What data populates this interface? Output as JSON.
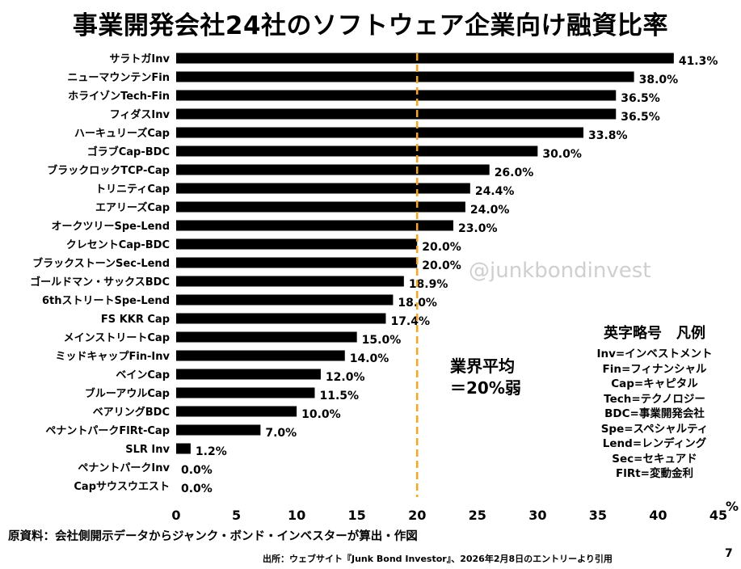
{
  "title": "事業開発会社24社のソフトウェア企業向け融資比率",
  "chart_data": {
    "type": "bar",
    "orientation": "horizontal",
    "categories": [
      "サラトガInv",
      "ニューマウンテンFin",
      "ホライゾンTech-Fin",
      "フィダスInv",
      "ハーキュリーズCap",
      "ゴラブCap-BDC",
      "ブラックロックTCP-Cap",
      "トリニティCap",
      "エアリーズCap",
      "オークツリーSpe-Lend",
      "クレセントCap-BDC",
      "ブラックストーンSec-Lend",
      "ゴールドマン・サックスBDC",
      "6thストリートSpe-Lend",
      "FS KKR Cap",
      "メインストリートCap",
      "ミッドキャップFin-Inv",
      "ベインCap",
      "ブルーアウルCap",
      "ベアリングBDC",
      "ペナントパークFlRt-Cap",
      "SLR Inv",
      "ペナントパークInv",
      "Capサウスウエスト"
    ],
    "values": [
      41.3,
      38.0,
      36.5,
      36.5,
      33.8,
      30.0,
      26.0,
      24.4,
      24.0,
      23.0,
      20.0,
      20.0,
      18.9,
      18.0,
      17.4,
      15.0,
      14.0,
      12.0,
      11.5,
      10.0,
      7.0,
      1.2,
      0.0,
      0.0
    ],
    "value_labels": [
      "41.3%",
      "38.0%",
      "36.5%",
      "36.5%",
      "33.8%",
      "30.0%",
      "26.0%",
      "24.4%",
      "24.0%",
      "23.0%",
      "20.0%",
      "20.0%",
      "18.9%",
      "18.0%",
      "17.4%",
      "15.0%",
      "14.0%",
      "12.0%",
      "11.5%",
      "10.0%",
      "7.0%",
      "1.2%",
      "0.0%",
      "0.0%"
    ],
    "xlim": [
      0,
      45
    ],
    "xticks": [
      0,
      5,
      10,
      15,
      20,
      25,
      30,
      35,
      40,
      45
    ],
    "xunit": "%",
    "reference_line": {
      "value": 20,
      "color": "#f5a623"
    },
    "bar_color": "#000000"
  },
  "annotation": {
    "line1": "業界平均",
    "line2": "＝20%弱"
  },
  "watermark": "@junkbondinvest",
  "legend": {
    "title": "英字略号　凡例",
    "items": [
      "Inv=インベストメント",
      "Fin=フィナンシャル",
      "Cap=キャピタル",
      "Tech=テクノロジー",
      "BDC=事業開発会社",
      "Spe=スペシャルティ",
      "Lend=レンディング",
      "Sec=セキュアド",
      "FlRt=変動金利"
    ]
  },
  "source_note": "原資料：会社側開示データからジャンク・ボンド・インベスターが算出・作図",
  "citation": "出所：ウェブサイト『Junk Bond Investor』、2026年2月8日のエントリーより引用",
  "page_number": "7"
}
